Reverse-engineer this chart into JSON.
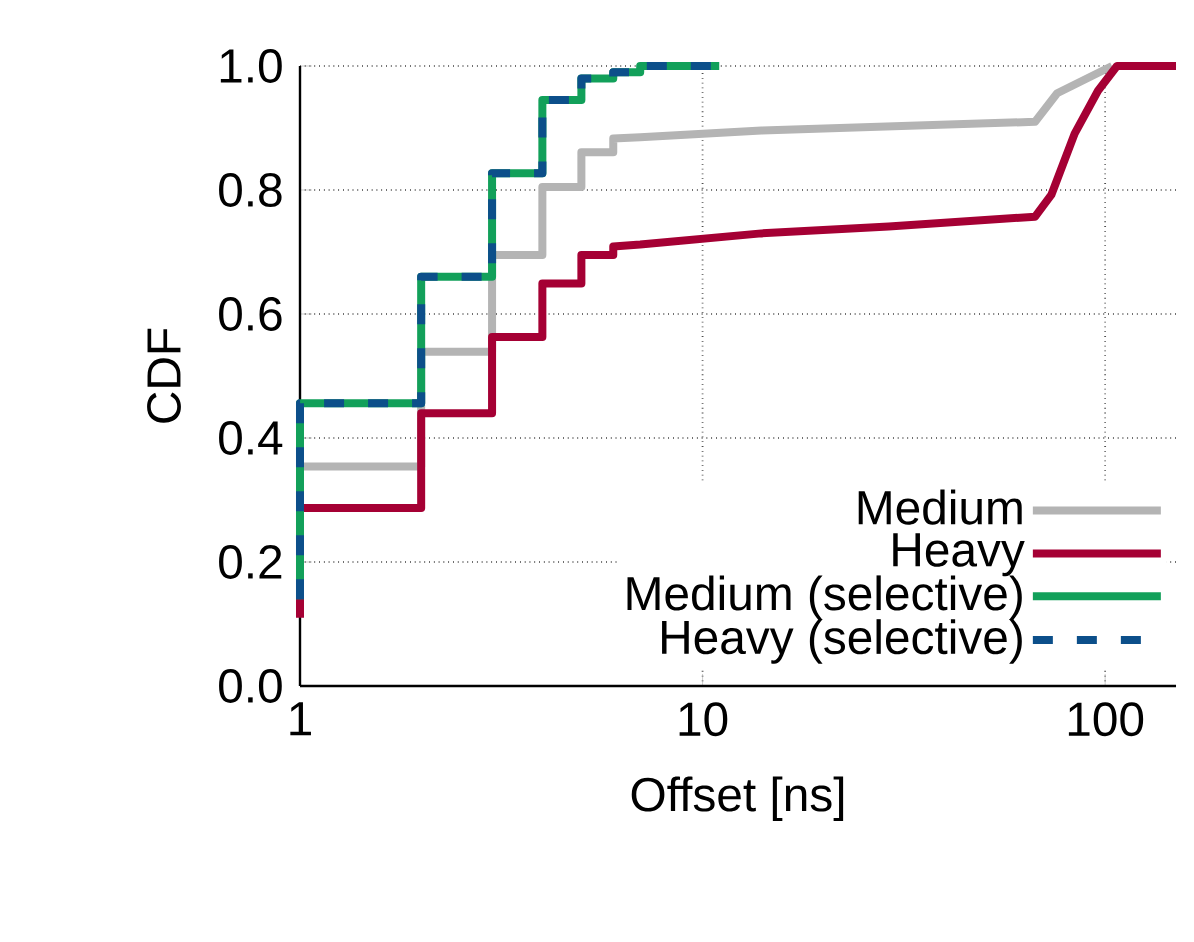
{
  "chart_data": {
    "type": "line",
    "xlabel": "Offset [ns]",
    "ylabel": "CDF",
    "log": "x",
    "xlim": [
      1,
      150
    ],
    "ylim": [
      0,
      1
    ],
    "xticks": [
      1,
      10,
      100
    ],
    "yticks": [
      {
        "value": 0,
        "label": "0.0"
      },
      {
        "value": 0.2,
        "label": "0.2"
      },
      {
        "value": 0.4,
        "label": "0.4"
      },
      {
        "value": 0.6,
        "label": "0.6"
      },
      {
        "value": 0.8,
        "label": "0.8"
      },
      {
        "value": 1,
        "label": "1.0"
      }
    ],
    "grid": true,
    "legend": "bottom right",
    "marker": "none",
    "series": [
      {
        "name": "Medium",
        "color": "#b4b4b4",
        "line_style": "solid",
        "x": [
          1,
          2,
          2,
          3,
          3,
          4,
          4,
          5,
          5,
          6,
          6,
          7,
          14,
          67,
          76,
          104
        ],
        "values": [
          0.354,
          0.354,
          0.539,
          0.539,
          0.695,
          0.695,
          0.805,
          0.805,
          0.861,
          0.861,
          0.883,
          0.885,
          0.896,
          0.91,
          0.956,
          1.0
        ]
      },
      {
        "name": "Heavy",
        "color": "#a50034",
        "line_style": "solid",
        "x": [
          1,
          1,
          2,
          2,
          3,
          3,
          4,
          4,
          5,
          5,
          6,
          6,
          7,
          14,
          29,
          67,
          73.5,
          84,
          96,
          107,
          150
        ],
        "values": [
          0.11,
          0.287,
          0.287,
          0.44,
          0.44,
          0.563,
          0.563,
          0.649,
          0.649,
          0.695,
          0.695,
          0.709,
          0.712,
          0.73,
          0.741,
          0.757,
          0.792,
          0.891,
          0.96,
          1.0,
          1.0
        ]
      },
      {
        "name": "Medium (selective)",
        "color": "#12a05a",
        "line_style": "solid",
        "x": [
          1,
          1,
          2,
          2,
          3,
          3,
          4,
          4,
          5,
          5,
          6,
          6,
          7,
          7,
          11
        ],
        "values": [
          0.14,
          0.456,
          0.456,
          0.66,
          0.66,
          0.827,
          0.827,
          0.945,
          0.945,
          0.98,
          0.98,
          0.99,
          0.99,
          1.0,
          1.0
        ]
      },
      {
        "name": "Heavy (selective)",
        "color": "#0c4f8a",
        "line_style": "dashed",
        "x": [
          1,
          1,
          2,
          2,
          3,
          3,
          4,
          4,
          5,
          5,
          6,
          6,
          7,
          7,
          11
        ],
        "values": [
          0.14,
          0.456,
          0.456,
          0.66,
          0.66,
          0.827,
          0.827,
          0.945,
          0.945,
          0.98,
          0.98,
          0.99,
          0.99,
          1.0,
          1.0
        ]
      }
    ]
  }
}
